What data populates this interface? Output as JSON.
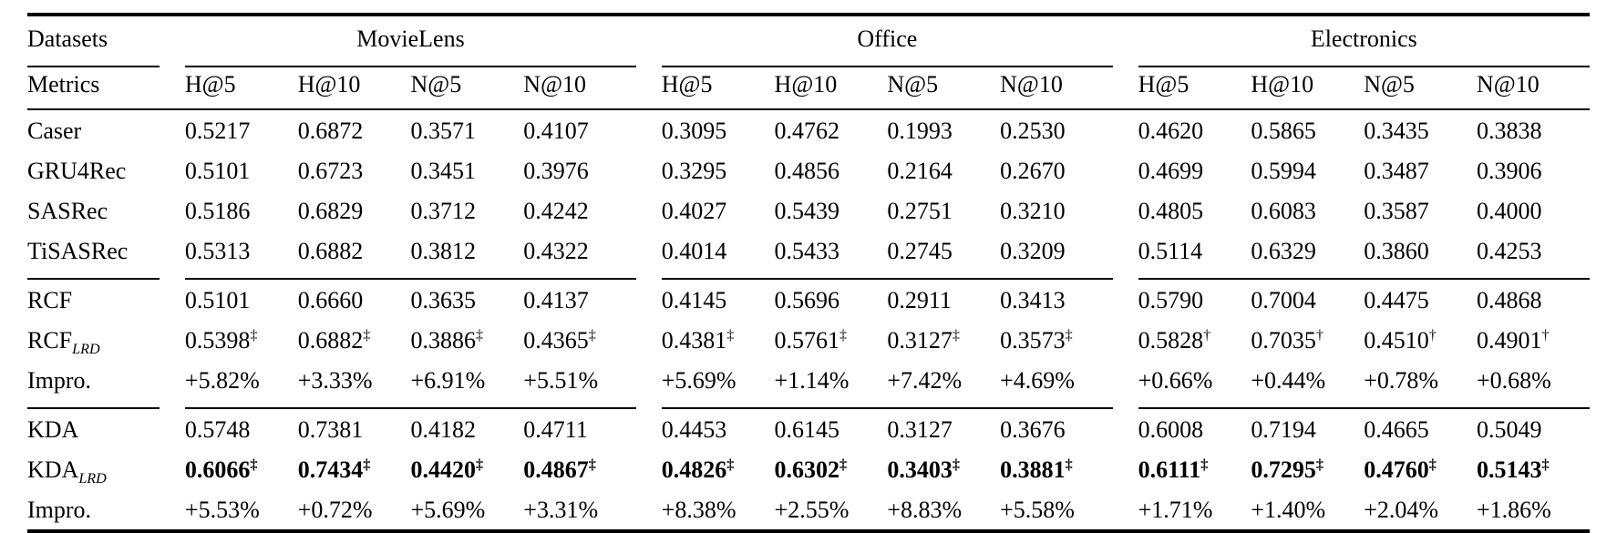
{
  "header": {
    "datasets_label": "Datasets",
    "metrics_label": "Metrics",
    "groups": [
      {
        "name": "MovieLens",
        "metrics": [
          "H@5",
          "H@10",
          "N@5",
          "N@10"
        ]
      },
      {
        "name": "Office",
        "metrics": [
          "H@5",
          "H@10",
          "N@5",
          "N@10"
        ]
      },
      {
        "name": "Electronics",
        "metrics": [
          "H@5",
          "H@10",
          "N@5",
          "N@10"
        ]
      }
    ]
  },
  "colors": {
    "text": "#000000",
    "background": "#ffffff",
    "rule": "#000000"
  },
  "body": {
    "sections": [
      {
        "rows": [
          {
            "label": "Caser",
            "label_sub": "",
            "bold_values": false,
            "cells": [
              [
                "0.5217",
                ""
              ],
              [
                "0.6872",
                ""
              ],
              [
                "0.3571",
                ""
              ],
              [
                "0.4107",
                ""
              ],
              [
                "0.3095",
                ""
              ],
              [
                "0.4762",
                ""
              ],
              [
                "0.1993",
                ""
              ],
              [
                "0.2530",
                ""
              ],
              [
                "0.4620",
                ""
              ],
              [
                "0.5865",
                ""
              ],
              [
                "0.3435",
                ""
              ],
              [
                "0.3838",
                ""
              ]
            ]
          },
          {
            "label": "GRU4Rec",
            "label_sub": "",
            "bold_values": false,
            "cells": [
              [
                "0.5101",
                ""
              ],
              [
                "0.6723",
                ""
              ],
              [
                "0.3451",
                ""
              ],
              [
                "0.3976",
                ""
              ],
              [
                "0.3295",
                ""
              ],
              [
                "0.4856",
                ""
              ],
              [
                "0.2164",
                ""
              ],
              [
                "0.2670",
                ""
              ],
              [
                "0.4699",
                ""
              ],
              [
                "0.5994",
                ""
              ],
              [
                "0.3487",
                ""
              ],
              [
                "0.3906",
                ""
              ]
            ]
          },
          {
            "label": "SASRec",
            "label_sub": "",
            "bold_values": false,
            "cells": [
              [
                "0.5186",
                ""
              ],
              [
                "0.6829",
                ""
              ],
              [
                "0.3712",
                ""
              ],
              [
                "0.4242",
                ""
              ],
              [
                "0.4027",
                ""
              ],
              [
                "0.5439",
                ""
              ],
              [
                "0.2751",
                ""
              ],
              [
                "0.3210",
                ""
              ],
              [
                "0.4805",
                ""
              ],
              [
                "0.6083",
                ""
              ],
              [
                "0.3587",
                ""
              ],
              [
                "0.4000",
                ""
              ]
            ]
          },
          {
            "label": "TiSASRec",
            "label_sub": "",
            "bold_values": false,
            "cells": [
              [
                "0.5313",
                ""
              ],
              [
                "0.6882",
                ""
              ],
              [
                "0.3812",
                ""
              ],
              [
                "0.4322",
                ""
              ],
              [
                "0.4014",
                ""
              ],
              [
                "0.5433",
                ""
              ],
              [
                "0.2745",
                ""
              ],
              [
                "0.3209",
                ""
              ],
              [
                "0.5114",
                ""
              ],
              [
                "0.6329",
                ""
              ],
              [
                "0.3860",
                ""
              ],
              [
                "0.4253",
                ""
              ]
            ]
          }
        ]
      },
      {
        "rows": [
          {
            "label": "RCF",
            "label_sub": "",
            "bold_values": false,
            "cells": [
              [
                "0.5101",
                ""
              ],
              [
                "0.6660",
                ""
              ],
              [
                "0.3635",
                ""
              ],
              [
                "0.4137",
                ""
              ],
              [
                "0.4145",
                ""
              ],
              [
                "0.5696",
                ""
              ],
              [
                "0.2911",
                ""
              ],
              [
                "0.3413",
                ""
              ],
              [
                "0.5790",
                ""
              ],
              [
                "0.7004",
                ""
              ],
              [
                "0.4475",
                ""
              ],
              [
                "0.4868",
                ""
              ]
            ]
          },
          {
            "label": "RCF",
            "label_sub": "LRD",
            "bold_values": false,
            "cells": [
              [
                "0.5398",
                "‡"
              ],
              [
                "0.6882",
                "‡"
              ],
              [
                "0.3886",
                "‡"
              ],
              [
                "0.4365",
                "‡"
              ],
              [
                "0.4381",
                "‡"
              ],
              [
                "0.5761",
                "‡"
              ],
              [
                "0.3127",
                "‡"
              ],
              [
                "0.3573",
                "‡"
              ],
              [
                "0.5828",
                "†"
              ],
              [
                "0.7035",
                "†"
              ],
              [
                "0.4510",
                "†"
              ],
              [
                "0.4901",
                "†"
              ]
            ]
          },
          {
            "label": "Impro.",
            "label_sub": "",
            "bold_values": false,
            "cells": [
              [
                "+5.82%",
                ""
              ],
              [
                "+3.33%",
                ""
              ],
              [
                "+6.91%",
                ""
              ],
              [
                "+5.51%",
                ""
              ],
              [
                "+5.69%",
                ""
              ],
              [
                "+1.14%",
                ""
              ],
              [
                "+7.42%",
                ""
              ],
              [
                "+4.69%",
                ""
              ],
              [
                "+0.66%",
                ""
              ],
              [
                "+0.44%",
                ""
              ],
              [
                "+0.78%",
                ""
              ],
              [
                "+0.68%",
                ""
              ]
            ]
          }
        ]
      },
      {
        "rows": [
          {
            "label": "KDA",
            "label_sub": "",
            "bold_values": false,
            "cells": [
              [
                "0.5748",
                ""
              ],
              [
                "0.7381",
                ""
              ],
              [
                "0.4182",
                ""
              ],
              [
                "0.4711",
                ""
              ],
              [
                "0.4453",
                ""
              ],
              [
                "0.6145",
                ""
              ],
              [
                "0.3127",
                ""
              ],
              [
                "0.3676",
                ""
              ],
              [
                "0.6008",
                ""
              ],
              [
                "0.7194",
                ""
              ],
              [
                "0.4665",
                ""
              ],
              [
                "0.5049",
                ""
              ]
            ]
          },
          {
            "label": "KDA",
            "label_sub": "LRD",
            "bold_values": true,
            "cells": [
              [
                "0.6066",
                "‡"
              ],
              [
                "0.7434",
                "‡"
              ],
              [
                "0.4420",
                "‡"
              ],
              [
                "0.4867",
                "‡"
              ],
              [
                "0.4826",
                "‡"
              ],
              [
                "0.6302",
                "‡"
              ],
              [
                "0.3403",
                "‡"
              ],
              [
                "0.3881",
                "‡"
              ],
              [
                "0.6111",
                "‡"
              ],
              [
                "0.7295",
                "‡"
              ],
              [
                "0.4760",
                "‡"
              ],
              [
                "0.5143",
                "‡"
              ]
            ]
          },
          {
            "label": "Impro.",
            "label_sub": "",
            "bold_values": false,
            "cells": [
              [
                "+5.53%",
                ""
              ],
              [
                "+0.72%",
                ""
              ],
              [
                "+5.69%",
                ""
              ],
              [
                "+3.31%",
                ""
              ],
              [
                "+8.38%",
                ""
              ],
              [
                "+2.55%",
                ""
              ],
              [
                "+8.83%",
                ""
              ],
              [
                "+5.58%",
                ""
              ],
              [
                "+1.71%",
                ""
              ],
              [
                "+1.40%",
                ""
              ],
              [
                "+2.04%",
                ""
              ],
              [
                "+1.86%",
                ""
              ]
            ]
          }
        ]
      }
    ]
  }
}
